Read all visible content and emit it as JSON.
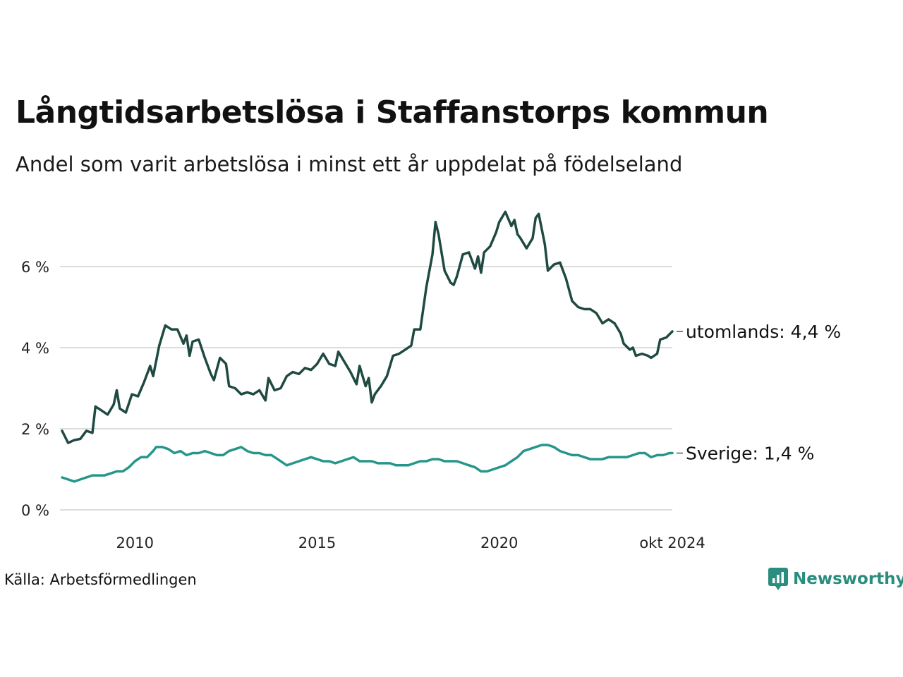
{
  "header": {
    "title": "Långtidsarbetslösa i Staffanstorps kommun",
    "subtitle": "Andel som varit arbetslösa i minst ett år uppdelat på födelseland"
  },
  "footer": {
    "source": "Källa: Arbetsförmedlingen",
    "brand": "Newsworthy"
  },
  "colors": {
    "utomlands": "#1f4a42",
    "sverige": "#26968a",
    "grid": "#dddddd",
    "brand": "#2b8d7f"
  },
  "chart_data": {
    "type": "line",
    "title": "Långtidsarbetslösa i Staffanstorps kommun",
    "subtitle": "Andel som varit arbetslösa i minst ett år uppdelat på födelseland",
    "xlabel": "",
    "ylabel": "",
    "x_range": [
      "2008-01",
      "2024-10"
    ],
    "ylim": [
      0,
      7.5
    ],
    "y_ticks": [
      0,
      2,
      4,
      6
    ],
    "y_tick_labels": [
      "0 %",
      "2 %",
      "4 %",
      "6 %"
    ],
    "x_ticks": [
      "2010-01",
      "2015-01",
      "2020-01",
      "2024-10"
    ],
    "x_tick_labels": [
      "2010",
      "2015",
      "2020",
      "okt 2024"
    ],
    "grid": true,
    "series": [
      {
        "name": "utomlands",
        "end_label": "utomlands: 4,4 %",
        "points": [
          [
            "2008-01",
            1.95
          ],
          [
            "2008-03",
            1.65
          ],
          [
            "2008-05",
            1.72
          ],
          [
            "2008-07",
            1.75
          ],
          [
            "2008-09",
            1.95
          ],
          [
            "2008-11",
            1.9
          ],
          [
            "2008-12",
            2.55
          ],
          [
            "2009-02",
            2.45
          ],
          [
            "2009-04",
            2.35
          ],
          [
            "2009-06",
            2.6
          ],
          [
            "2009-07",
            2.95
          ],
          [
            "2009-08",
            2.5
          ],
          [
            "2009-10",
            2.4
          ],
          [
            "2009-12",
            2.85
          ],
          [
            "2010-02",
            2.8
          ],
          [
            "2010-04",
            3.15
          ],
          [
            "2010-06",
            3.55
          ],
          [
            "2010-07",
            3.3
          ],
          [
            "2010-09",
            4.05
          ],
          [
            "2010-11",
            4.55
          ],
          [
            "2011-01",
            4.45
          ],
          [
            "2011-03",
            4.45
          ],
          [
            "2011-05",
            4.1
          ],
          [
            "2011-06",
            4.3
          ],
          [
            "2011-07",
            3.8
          ],
          [
            "2011-08",
            4.15
          ],
          [
            "2011-10",
            4.2
          ],
          [
            "2011-12",
            3.75
          ],
          [
            "2012-02",
            3.35
          ],
          [
            "2012-03",
            3.2
          ],
          [
            "2012-05",
            3.75
          ],
          [
            "2012-07",
            3.6
          ],
          [
            "2012-08",
            3.05
          ],
          [
            "2012-10",
            3.0
          ],
          [
            "2012-12",
            2.85
          ],
          [
            "2013-02",
            2.9
          ],
          [
            "2013-04",
            2.85
          ],
          [
            "2013-06",
            2.95
          ],
          [
            "2013-08",
            2.7
          ],
          [
            "2013-09",
            3.25
          ],
          [
            "2013-11",
            2.95
          ],
          [
            "2014-01",
            3.0
          ],
          [
            "2014-03",
            3.3
          ],
          [
            "2014-05",
            3.4
          ],
          [
            "2014-07",
            3.35
          ],
          [
            "2014-09",
            3.5
          ],
          [
            "2014-11",
            3.45
          ],
          [
            "2015-01",
            3.6
          ],
          [
            "2015-03",
            3.85
          ],
          [
            "2015-05",
            3.6
          ],
          [
            "2015-07",
            3.55
          ],
          [
            "2015-08",
            3.9
          ],
          [
            "2015-10",
            3.65
          ],
          [
            "2015-12",
            3.4
          ],
          [
            "2016-02",
            3.1
          ],
          [
            "2016-03",
            3.55
          ],
          [
            "2016-05",
            3.05
          ],
          [
            "2016-06",
            3.25
          ],
          [
            "2016-07",
            2.65
          ],
          [
            "2016-08",
            2.85
          ],
          [
            "2016-10",
            3.05
          ],
          [
            "2016-12",
            3.3
          ],
          [
            "2017-02",
            3.8
          ],
          [
            "2017-04",
            3.85
          ],
          [
            "2017-06",
            3.95
          ],
          [
            "2017-08",
            4.05
          ],
          [
            "2017-09",
            4.45
          ],
          [
            "2017-11",
            4.45
          ],
          [
            "2018-01",
            5.5
          ],
          [
            "2018-03",
            6.3
          ],
          [
            "2018-04",
            7.1
          ],
          [
            "2018-05",
            6.8
          ],
          [
            "2018-07",
            5.9
          ],
          [
            "2018-09",
            5.6
          ],
          [
            "2018-10",
            5.55
          ],
          [
            "2018-11",
            5.75
          ],
          [
            "2019-01",
            6.3
          ],
          [
            "2019-03",
            6.35
          ],
          [
            "2019-05",
            5.95
          ],
          [
            "2019-06",
            6.25
          ],
          [
            "2019-07",
            5.85
          ],
          [
            "2019-08",
            6.35
          ],
          [
            "2019-10",
            6.5
          ],
          [
            "2019-12",
            6.85
          ],
          [
            "2020-01",
            7.1
          ],
          [
            "2020-03",
            7.35
          ],
          [
            "2020-05",
            7.0
          ],
          [
            "2020-06",
            7.15
          ],
          [
            "2020-07",
            6.8
          ],
          [
            "2020-08",
            6.7
          ],
          [
            "2020-10",
            6.45
          ],
          [
            "2020-12",
            6.7
          ],
          [
            "2021-01",
            7.2
          ],
          [
            "2021-02",
            7.3
          ],
          [
            "2021-04",
            6.55
          ],
          [
            "2021-05",
            5.9
          ],
          [
            "2021-07",
            6.05
          ],
          [
            "2021-09",
            6.1
          ],
          [
            "2021-11",
            5.7
          ],
          [
            "2022-01",
            5.15
          ],
          [
            "2022-03",
            5.0
          ],
          [
            "2022-05",
            4.95
          ],
          [
            "2022-07",
            4.95
          ],
          [
            "2022-09",
            4.85
          ],
          [
            "2022-11",
            4.6
          ],
          [
            "2023-01",
            4.7
          ],
          [
            "2023-03",
            4.6
          ],
          [
            "2023-05",
            4.35
          ],
          [
            "2023-06",
            4.1
          ],
          [
            "2023-08",
            3.95
          ],
          [
            "2023-09",
            4.0
          ],
          [
            "2023-10",
            3.8
          ],
          [
            "2023-12",
            3.85
          ],
          [
            "2024-02",
            3.8
          ],
          [
            "2024-03",
            3.75
          ],
          [
            "2024-05",
            3.85
          ],
          [
            "2024-06",
            4.2
          ],
          [
            "2024-08",
            4.25
          ],
          [
            "2024-10",
            4.4
          ]
        ]
      },
      {
        "name": "Sverige",
        "end_label": "Sverige: 1,4 %",
        "points": [
          [
            "2008-01",
            0.8
          ],
          [
            "2008-03",
            0.75
          ],
          [
            "2008-05",
            0.7
          ],
          [
            "2008-07",
            0.75
          ],
          [
            "2008-09",
            0.8
          ],
          [
            "2008-11",
            0.85
          ],
          [
            "2009-01",
            0.85
          ],
          [
            "2009-03",
            0.85
          ],
          [
            "2009-05",
            0.9
          ],
          [
            "2009-07",
            0.95
          ],
          [
            "2009-09",
            0.95
          ],
          [
            "2009-11",
            1.05
          ],
          [
            "2010-01",
            1.2
          ],
          [
            "2010-03",
            1.3
          ],
          [
            "2010-05",
            1.3
          ],
          [
            "2010-07",
            1.45
          ],
          [
            "2010-08",
            1.55
          ],
          [
            "2010-10",
            1.55
          ],
          [
            "2010-12",
            1.5
          ],
          [
            "2011-02",
            1.4
          ],
          [
            "2011-04",
            1.45
          ],
          [
            "2011-06",
            1.35
          ],
          [
            "2011-08",
            1.4
          ],
          [
            "2011-10",
            1.4
          ],
          [
            "2011-12",
            1.45
          ],
          [
            "2012-02",
            1.4
          ],
          [
            "2012-04",
            1.35
          ],
          [
            "2012-06",
            1.35
          ],
          [
            "2012-08",
            1.45
          ],
          [
            "2012-10",
            1.5
          ],
          [
            "2012-12",
            1.55
          ],
          [
            "2013-02",
            1.45
          ],
          [
            "2013-04",
            1.4
          ],
          [
            "2013-06",
            1.4
          ],
          [
            "2013-08",
            1.35
          ],
          [
            "2013-10",
            1.35
          ],
          [
            "2013-12",
            1.25
          ],
          [
            "2014-02",
            1.15
          ],
          [
            "2014-03",
            1.1
          ],
          [
            "2014-05",
            1.15
          ],
          [
            "2014-07",
            1.2
          ],
          [
            "2014-09",
            1.25
          ],
          [
            "2014-11",
            1.3
          ],
          [
            "2015-01",
            1.25
          ],
          [
            "2015-03",
            1.2
          ],
          [
            "2015-05",
            1.2
          ],
          [
            "2015-07",
            1.15
          ],
          [
            "2015-09",
            1.2
          ],
          [
            "2015-11",
            1.25
          ],
          [
            "2016-01",
            1.3
          ],
          [
            "2016-03",
            1.2
          ],
          [
            "2016-05",
            1.2
          ],
          [
            "2016-07",
            1.2
          ],
          [
            "2016-09",
            1.15
          ],
          [
            "2016-11",
            1.15
          ],
          [
            "2017-01",
            1.15
          ],
          [
            "2017-03",
            1.1
          ],
          [
            "2017-05",
            1.1
          ],
          [
            "2017-07",
            1.1
          ],
          [
            "2017-09",
            1.15
          ],
          [
            "2017-11",
            1.2
          ],
          [
            "2018-01",
            1.2
          ],
          [
            "2018-03",
            1.25
          ],
          [
            "2018-05",
            1.25
          ],
          [
            "2018-07",
            1.2
          ],
          [
            "2018-09",
            1.2
          ],
          [
            "2018-11",
            1.2
          ],
          [
            "2019-01",
            1.15
          ],
          [
            "2019-03",
            1.1
          ],
          [
            "2019-05",
            1.05
          ],
          [
            "2019-07",
            0.95
          ],
          [
            "2019-09",
            0.95
          ],
          [
            "2019-11",
            1.0
          ],
          [
            "2020-01",
            1.05
          ],
          [
            "2020-03",
            1.1
          ],
          [
            "2020-05",
            1.2
          ],
          [
            "2020-07",
            1.3
          ],
          [
            "2020-09",
            1.45
          ],
          [
            "2020-11",
            1.5
          ],
          [
            "2021-01",
            1.55
          ],
          [
            "2021-03",
            1.6
          ],
          [
            "2021-05",
            1.6
          ],
          [
            "2021-07",
            1.55
          ],
          [
            "2021-09",
            1.45
          ],
          [
            "2021-11",
            1.4
          ],
          [
            "2022-01",
            1.35
          ],
          [
            "2022-03",
            1.35
          ],
          [
            "2022-05",
            1.3
          ],
          [
            "2022-07",
            1.25
          ],
          [
            "2022-09",
            1.25
          ],
          [
            "2022-11",
            1.25
          ],
          [
            "2023-01",
            1.3
          ],
          [
            "2023-03",
            1.3
          ],
          [
            "2023-05",
            1.3
          ],
          [
            "2023-07",
            1.3
          ],
          [
            "2023-09",
            1.35
          ],
          [
            "2023-11",
            1.4
          ],
          [
            "2024-01",
            1.4
          ],
          [
            "2024-03",
            1.3
          ],
          [
            "2024-05",
            1.35
          ],
          [
            "2024-07",
            1.35
          ],
          [
            "2024-09",
            1.4
          ],
          [
            "2024-10",
            1.4
          ]
        ]
      }
    ]
  }
}
